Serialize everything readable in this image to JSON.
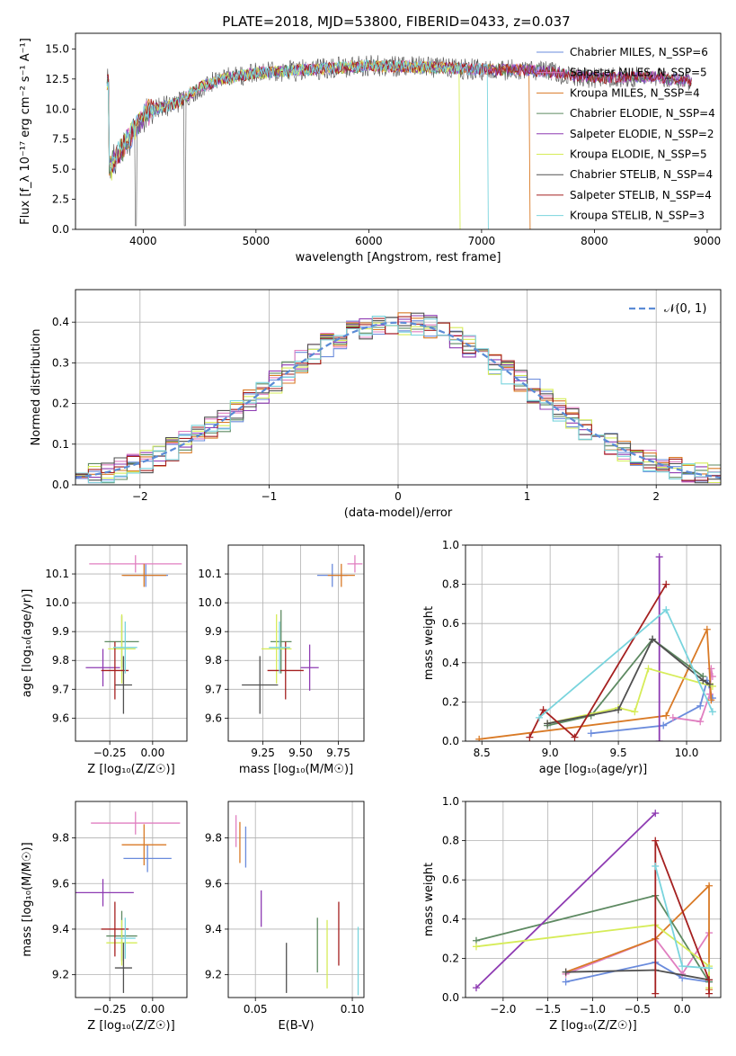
{
  "figure_title": "PLATE=2018, MJD=53800, FIBERID=0433, z=0.037",
  "series_colors": [
    "#6a8bdc",
    "#e07fc0",
    "#d97a26",
    "#5e8a62",
    "#8e3bb2",
    "#d6ec58",
    "#505050",
    "#a52020",
    "#79d4dd"
  ],
  "chart_data": [
    {
      "id": "spectrum",
      "type": "line",
      "xlabel": "wavelength [Angstrom, rest frame]",
      "ylabel": "Flux [f_λ 10⁻¹⁷ erg cm⁻² s⁻¹ A⁻¹]",
      "xlim": [
        3400,
        9120
      ],
      "ylim": [
        0,
        16.3
      ],
      "xticks": [
        4000,
        5000,
        6000,
        7000,
        8000,
        9000
      ],
      "yticks": [
        0.0,
        2.5,
        5.0,
        7.5,
        10.0,
        12.5,
        15.0
      ],
      "legend_position": "top-right",
      "legend": [
        "Chabrier MILES, N_SSP=6",
        "Salpeter MILES, N_SSP=5",
        "Kroupa MILES, N_SSP=4",
        "Chabrier ELODIE, N_SSP=4",
        "Salpeter ELODIE, N_SSP=2",
        "Kroupa ELODIE, N_SSP=5",
        "Chabrier STELIB, N_SSP=4",
        "Salpeter STELIB, N_SSP=4",
        "Kroupa STELIB, N_SSP=3"
      ],
      "continuum": [
        [
          3700,
          5.0
        ],
        [
          3800,
          6.5
        ],
        [
          3900,
          8.0
        ],
        [
          4000,
          9.5
        ],
        [
          4100,
          10.0
        ],
        [
          4300,
          10.5
        ],
        [
          4500,
          11.8
        ],
        [
          4700,
          12.5
        ],
        [
          5000,
          13.0
        ],
        [
          5500,
          13.3
        ],
        [
          6000,
          13.6
        ],
        [
          6500,
          13.5
        ],
        [
          7000,
          13.3
        ],
        [
          7500,
          13.2
        ],
        [
          8000,
          12.6
        ],
        [
          8500,
          12.7
        ],
        [
          8850,
          12.3
        ]
      ],
      "model_ranges": [
        [
          3680,
          8860
        ],
        [
          3680,
          8860
        ],
        [
          3680,
          7420
        ],
        [
          3680,
          8860
        ],
        [
          3680,
          8860
        ],
        [
          3680,
          6800
        ],
        [
          3680,
          8860
        ],
        [
          3680,
          8860
        ],
        [
          3680,
          7050
        ]
      ]
    },
    {
      "id": "residuals",
      "type": "line",
      "xlabel": "(data-model)/error",
      "ylabel": "Normed distribution",
      "xlim": [
        -2.5,
        2.5
      ],
      "ylim": [
        0,
        0.48
      ],
      "xticks": [
        -2,
        -1,
        0,
        1,
        2
      ],
      "yticks": [
        0.0,
        0.1,
        0.2,
        0.3,
        0.4
      ],
      "legend_position": "top-right",
      "legend": [
        "𝒩(0, 1)"
      ],
      "bin_width": 0.1
    },
    {
      "id": "age_vs_Z",
      "type": "scatter",
      "xlabel": "Z [log₁₀(Z/Z☉)]",
      "ylabel": "age  [log₁₀(age/yr)]",
      "xlim": [
        -0.45,
        0.2
      ],
      "ylim": [
        9.52,
        10.2
      ],
      "xticks": [
        -0.25,
        0.0
      ],
      "xticklabels": [
        "−0.25",
        "0.00"
      ],
      "yticks": [
        9.6,
        9.7,
        9.8,
        9.9,
        10.0,
        10.1
      ],
      "points": [
        {
          "x": -0.04,
          "y": 10.095,
          "xerr": 0.13,
          "yerr": 0.04
        },
        {
          "x": -0.1,
          "y": 10.135,
          "xerr": 0.27,
          "yerr": 0.03
        },
        {
          "x": -0.05,
          "y": 10.095,
          "xerr": 0.13,
          "yerr": 0.04
        },
        {
          "x": -0.18,
          "y": 9.865,
          "xerr": 0.1,
          "yerr": 0.09
        },
        {
          "x": -0.29,
          "y": 9.775,
          "xerr": 0.1,
          "yerr": 0.065
        },
        {
          "x": -0.18,
          "y": 9.84,
          "xerr": 0.08,
          "yerr": 0.12
        },
        {
          "x": -0.17,
          "y": 9.715,
          "xerr": 0.05,
          "yerr": 0.1
        },
        {
          "x": -0.22,
          "y": 9.765,
          "xerr": 0.08,
          "yerr": 0.1
        },
        {
          "x": -0.16,
          "y": 9.845,
          "xerr": 0.07,
          "yerr": 0.09
        }
      ]
    },
    {
      "id": "age_vs_mass",
      "type": "scatter",
      "xlabel": "mass [log₁₀(M/M☉)]",
      "ylabel": "",
      "xlim": [
        9.02,
        9.92
      ],
      "ylim": [
        9.52,
        10.2
      ],
      "xticks": [
        9.25,
        9.5,
        9.75
      ],
      "xticklabels": [
        "9.25",
        "9.50",
        "9.75"
      ],
      "yticks": [
        9.6,
        9.7,
        9.8,
        9.9,
        10.0,
        10.1
      ],
      "points": [
        {
          "x": 9.71,
          "y": 10.095,
          "xerr": 0.1,
          "yerr": 0.04
        },
        {
          "x": 9.86,
          "y": 10.135,
          "xerr": 0.05,
          "yerr": 0.03
        },
        {
          "x": 9.77,
          "y": 10.095,
          "xerr": 0.09,
          "yerr": 0.04
        },
        {
          "x": 9.37,
          "y": 9.865,
          "xerr": 0.07,
          "yerr": 0.11
        },
        {
          "x": 9.56,
          "y": 9.775,
          "xerr": 0.06,
          "yerr": 0.08
        },
        {
          "x": 9.34,
          "y": 9.84,
          "xerr": 0.1,
          "yerr": 0.12
        },
        {
          "x": 9.23,
          "y": 9.715,
          "xerr": 0.12,
          "yerr": 0.1
        },
        {
          "x": 9.4,
          "y": 9.765,
          "xerr": 0.12,
          "yerr": 0.1
        },
        {
          "x": 9.36,
          "y": 9.845,
          "xerr": 0.07,
          "yerr": 0.09
        }
      ]
    },
    {
      "id": "weight_vs_age",
      "type": "line",
      "xlabel": "age  [log₁₀(age/yr)]",
      "ylabel": "mass weight",
      "xlim": [
        8.38,
        10.25
      ],
      "ylim": [
        0,
        1.0
      ],
      "xticks": [
        8.5,
        9.0,
        9.5,
        10.0
      ],
      "xticklabels": [
        "8.5",
        "9.0",
        "9.5",
        "10.0"
      ],
      "yticks": [
        0.0,
        0.2,
        0.4,
        0.6,
        0.8,
        1.0
      ],
      "series": [
        {
          "x": [
            9.3,
            9.83,
            10.1,
            10.15,
            10.19
          ],
          "y": [
            0.04,
            0.08,
            0.18,
            0.31,
            0.22
          ]
        },
        {
          "x": [
            9.9,
            10.1,
            10.17,
            10.18,
            10.19
          ],
          "y": [
            0.12,
            0.1,
            0.24,
            0.37,
            0.33
          ]
        },
        {
          "x": [
            8.48,
            9.85,
            10.15,
            10.18
          ],
          "y": [
            0.01,
            0.13,
            0.57,
            0.21
          ]
        },
        {
          "x": [
            8.98,
            9.3,
            9.75,
            10.12
          ],
          "y": [
            0.08,
            0.13,
            0.52,
            0.33
          ]
        },
        {
          "x": [
            9.8,
            9.8
          ],
          "y": [
            0.0,
            0.94
          ]
        },
        {
          "x": [
            8.98,
            9.5,
            9.62,
            9.72,
            10.19
          ],
          "y": [
            0.09,
            0.17,
            0.15,
            0.37,
            0.28
          ]
        },
        {
          "x": [
            8.98,
            9.5,
            9.75,
            10.12,
            10.17
          ],
          "y": [
            0.09,
            0.16,
            0.52,
            0.31,
            0.29
          ]
        },
        {
          "x": [
            8.85,
            8.95,
            9.18,
            9.85
          ],
          "y": [
            0.02,
            0.16,
            0.02,
            0.8
          ]
        },
        {
          "x": [
            8.92,
            9.85,
            10.19
          ],
          "y": [
            0.12,
            0.67,
            0.15
          ]
        }
      ]
    },
    {
      "id": "mass_vs_Z",
      "type": "scatter",
      "xlabel": "Z [log₁₀(Z/Z☉)]",
      "ylabel": "mass [log₁₀(M/M☉)]",
      "xlim": [
        -0.45,
        0.2
      ],
      "ylim": [
        9.1,
        9.96
      ],
      "xticks": [
        -0.25,
        0.0
      ],
      "xticklabels": [
        "−0.25",
        "0.00"
      ],
      "yticks": [
        9.2,
        9.4,
        9.6,
        9.8
      ],
      "points": [
        {
          "x": -0.03,
          "y": 9.71,
          "xerr": 0.14,
          "yerr": 0.06
        },
        {
          "x": -0.1,
          "y": 9.865,
          "xerr": 0.26,
          "yerr": 0.05
        },
        {
          "x": -0.05,
          "y": 9.77,
          "xerr": 0.13,
          "yerr": 0.09
        },
        {
          "x": -0.18,
          "y": 9.37,
          "xerr": 0.09,
          "yerr": 0.11
        },
        {
          "x": -0.29,
          "y": 9.56,
          "xerr": 0.18,
          "yerr": 0.06
        },
        {
          "x": -0.18,
          "y": 9.34,
          "xerr": 0.09,
          "yerr": 0.1
        },
        {
          "x": -0.17,
          "y": 9.23,
          "xerr": 0.05,
          "yerr": 0.11
        },
        {
          "x": -0.22,
          "y": 9.4,
          "xerr": 0.08,
          "yerr": 0.12
        },
        {
          "x": -0.16,
          "y": 9.36,
          "xerr": 0.06,
          "yerr": 0.09
        }
      ]
    },
    {
      "id": "mass_vs_ebv",
      "type": "scatter",
      "xlabel": "E(B-V)",
      "ylabel": "",
      "xlim": [
        0.036,
        0.106
      ],
      "ylim": [
        9.1,
        9.96
      ],
      "xticks": [
        0.05,
        0.1
      ],
      "xticklabels": [
        "0.05",
        "0.10"
      ],
      "yticks": [
        9.2,
        9.4,
        9.6,
        9.8
      ],
      "points": [
        {
          "x": 0.045,
          "y": 9.76,
          "xerr": 0,
          "yerr": 0.09
        },
        {
          "x": 0.04,
          "y": 9.83,
          "xerr": 0,
          "yerr": 0.07
        },
        {
          "x": 0.042,
          "y": 9.78,
          "xerr": 0,
          "yerr": 0.09
        },
        {
          "x": 0.082,
          "y": 9.33,
          "xerr": 0,
          "yerr": 0.12
        },
        {
          "x": 0.053,
          "y": 9.49,
          "xerr": 0,
          "yerr": 0.08
        },
        {
          "x": 0.087,
          "y": 9.29,
          "xerr": 0,
          "yerr": 0.15
        },
        {
          "x": 0.066,
          "y": 9.23,
          "xerr": 0,
          "yerr": 0.11
        },
        {
          "x": 0.093,
          "y": 9.38,
          "xerr": 0,
          "yerr": 0.14
        },
        {
          "x": 0.103,
          "y": 9.26,
          "xerr": 0,
          "yerr": 0.15
        }
      ]
    },
    {
      "id": "weight_vs_Z",
      "type": "line",
      "xlabel": "Z [log₁₀(Z/Z☉)]",
      "ylabel": "mass weight",
      "xlim": [
        -2.42,
        0.43
      ],
      "ylim": [
        0,
        1.0
      ],
      "xticks": [
        -2.0,
        -1.5,
        -1.0,
        -0.5,
        0.0
      ],
      "xticklabels": [
        "−2.0",
        "−1.5",
        "−1.0",
        "−0.5",
        "0.0"
      ],
      "yticks": [
        0.0,
        0.2,
        0.4,
        0.6,
        0.8,
        1.0
      ],
      "series": [
        {
          "x": [
            -1.3,
            -0.3,
            0.0,
            0.3
          ],
          "y": [
            0.08,
            0.18,
            0.1,
            0.08
          ]
        },
        {
          "x": [
            -1.3,
            -0.3,
            0.0,
            0.3
          ],
          "y": [
            0.12,
            0.3,
            0.12,
            0.33
          ]
        },
        {
          "x": [
            -1.3,
            -0.3,
            0.3,
            0.3
          ],
          "y": [
            0.13,
            0.3,
            0.57,
            0.04
          ]
        },
        {
          "x": [
            -2.3,
            -0.3,
            0.3
          ],
          "y": [
            0.29,
            0.52,
            0.08
          ]
        },
        {
          "x": [
            -2.3,
            -0.3
          ],
          "y": [
            0.05,
            0.94
          ]
        },
        {
          "x": [
            -2.3,
            -0.3,
            0.3,
            0.3
          ],
          "y": [
            0.26,
            0.37,
            0.16,
            0.05
          ]
        },
        {
          "x": [
            -1.3,
            -0.3,
            0.3
          ],
          "y": [
            0.13,
            0.14,
            0.09
          ]
        },
        {
          "x": [
            -0.3,
            -0.3,
            0.3,
            0.3
          ],
          "y": [
            0.02,
            0.8,
            0.09,
            0.02
          ]
        },
        {
          "x": [
            -0.3,
            0.0,
            0.3
          ],
          "y": [
            0.67,
            0.16,
            0.15
          ]
        }
      ]
    }
  ]
}
